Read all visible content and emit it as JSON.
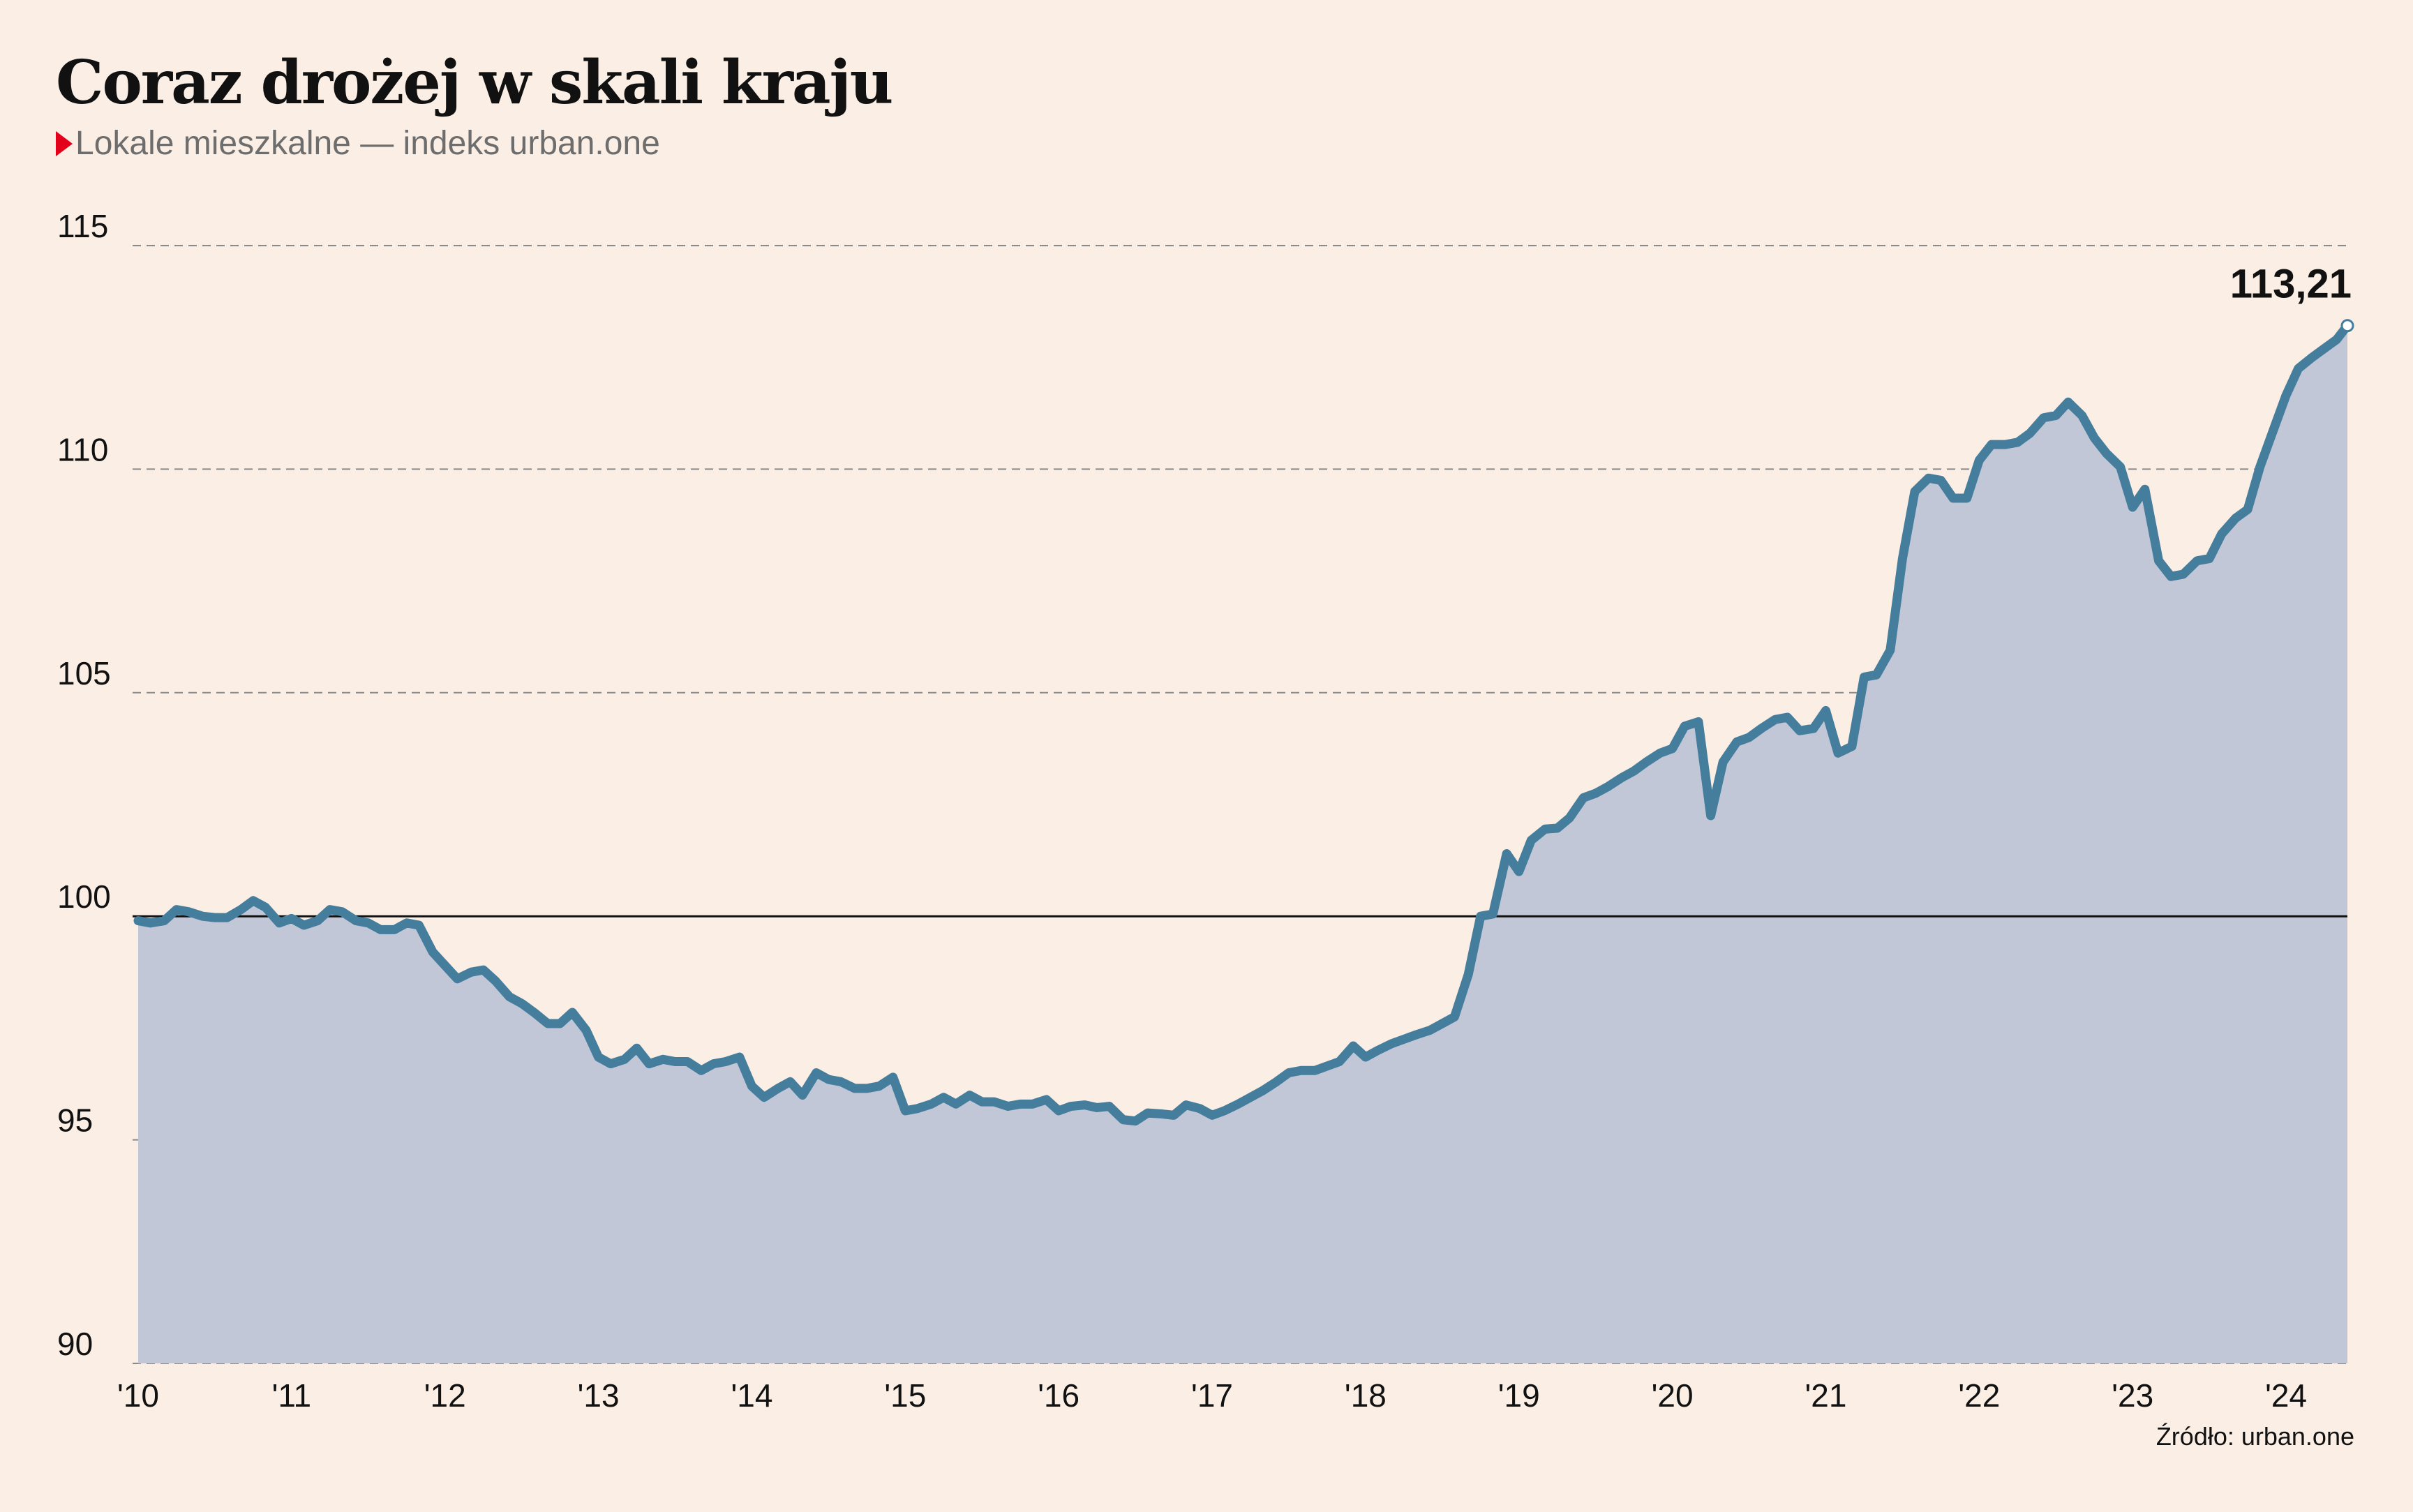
{
  "chart_data": {
    "type": "area",
    "title": "Coraz drożej w skali kraju",
    "subtitle": "Lokale mieszkalne — indeks urban.one",
    "source": "Źródło: urban.one",
    "y_ticks": [
      "115",
      "110",
      "105",
      "100",
      "95",
      "90"
    ],
    "x_ticks": [
      "'10",
      "'11",
      "'12",
      "'13",
      "'14",
      "'15",
      "'16",
      "'17",
      "'18",
      "'19",
      "'20",
      "'21",
      "'22",
      "'23",
      "'24"
    ],
    "xlim": [
      2010.0,
      2024.4
    ],
    "ylim": [
      90,
      115
    ],
    "reference_line": 100,
    "grid": true,
    "last_value_label": "113,21",
    "colors": {
      "background": "#fbeee4",
      "line": "#457d9c",
      "area": "#c2c7d8",
      "grid": "#8a8a8a",
      "reference": "#111111",
      "marker": "#e2001a"
    },
    "series": [
      {
        "points": [
          [
            2010.0,
            99.9
          ],
          [
            2010.08,
            99.85
          ],
          [
            2010.17,
            99.9
          ],
          [
            2010.25,
            100.15
          ],
          [
            2010.33,
            100.1
          ],
          [
            2010.42,
            100.0
          ],
          [
            2010.5,
            99.97
          ],
          [
            2010.58,
            99.97
          ],
          [
            2010.67,
            100.15
          ],
          [
            2010.75,
            100.35
          ],
          [
            2010.83,
            100.2
          ],
          [
            2010.92,
            99.85
          ],
          [
            2011.0,
            99.95
          ],
          [
            2011.08,
            99.8
          ],
          [
            2011.17,
            99.9
          ],
          [
            2011.25,
            100.15
          ],
          [
            2011.33,
            100.1
          ],
          [
            2011.42,
            99.9
          ],
          [
            2011.5,
            99.85
          ],
          [
            2011.58,
            99.7
          ],
          [
            2011.67,
            99.7
          ],
          [
            2011.75,
            99.85
          ],
          [
            2011.83,
            99.8
          ],
          [
            2011.92,
            99.2
          ],
          [
            2012.0,
            98.9
          ],
          [
            2012.08,
            98.6
          ],
          [
            2012.17,
            98.75
          ],
          [
            2012.25,
            98.8
          ],
          [
            2012.33,
            98.55
          ],
          [
            2012.42,
            98.2
          ],
          [
            2012.5,
            98.05
          ],
          [
            2012.58,
            97.85
          ],
          [
            2012.67,
            97.6
          ],
          [
            2012.75,
            97.6
          ],
          [
            2012.83,
            97.85
          ],
          [
            2012.92,
            97.45
          ],
          [
            2013.0,
            96.85
          ],
          [
            2013.08,
            96.7
          ],
          [
            2013.17,
            96.8
          ],
          [
            2013.25,
            97.05
          ],
          [
            2013.33,
            96.7
          ],
          [
            2013.42,
            96.8
          ],
          [
            2013.5,
            96.75
          ],
          [
            2013.58,
            96.75
          ],
          [
            2013.67,
            96.55
          ],
          [
            2013.75,
            96.7
          ],
          [
            2013.83,
            96.75
          ],
          [
            2013.92,
            96.85
          ],
          [
            2014.0,
            96.2
          ],
          [
            2014.08,
            95.95
          ],
          [
            2014.17,
            96.15
          ],
          [
            2014.25,
            96.3
          ],
          [
            2014.33,
            96.0
          ],
          [
            2014.42,
            96.5
          ],
          [
            2014.5,
            96.35
          ],
          [
            2014.58,
            96.3
          ],
          [
            2014.67,
            96.15
          ],
          [
            2014.75,
            96.15
          ],
          [
            2014.83,
            96.2
          ],
          [
            2014.92,
            96.4
          ],
          [
            2015.0,
            95.65
          ],
          [
            2015.08,
            95.7
          ],
          [
            2015.17,
            95.8
          ],
          [
            2015.25,
            95.95
          ],
          [
            2015.33,
            95.8
          ],
          [
            2015.42,
            96.0
          ],
          [
            2015.5,
            95.85
          ],
          [
            2015.58,
            95.85
          ],
          [
            2015.67,
            95.75
          ],
          [
            2015.75,
            95.8
          ],
          [
            2015.83,
            95.8
          ],
          [
            2015.92,
            95.9
          ],
          [
            2016.0,
            95.65
          ],
          [
            2016.08,
            95.75
          ],
          [
            2016.17,
            95.78
          ],
          [
            2016.25,
            95.72
          ],
          [
            2016.33,
            95.75
          ],
          [
            2016.42,
            95.45
          ],
          [
            2016.5,
            95.42
          ],
          [
            2016.58,
            95.6
          ],
          [
            2016.67,
            95.58
          ],
          [
            2016.75,
            95.55
          ],
          [
            2016.83,
            95.78
          ],
          [
            2016.92,
            95.7
          ],
          [
            2017.0,
            95.55
          ],
          [
            2017.08,
            95.65
          ],
          [
            2017.17,
            95.8
          ],
          [
            2017.25,
            95.95
          ],
          [
            2017.33,
            96.1
          ],
          [
            2017.42,
            96.3
          ],
          [
            2017.5,
            96.5
          ],
          [
            2017.58,
            96.55
          ],
          [
            2017.67,
            96.55
          ],
          [
            2017.75,
            96.65
          ],
          [
            2017.83,
            96.75
          ],
          [
            2017.92,
            97.1
          ],
          [
            2018.0,
            96.85
          ],
          [
            2018.08,
            97.0
          ],
          [
            2018.17,
            97.15
          ],
          [
            2018.25,
            97.25
          ],
          [
            2018.33,
            97.35
          ],
          [
            2018.42,
            97.45
          ],
          [
            2018.5,
            97.6
          ],
          [
            2018.58,
            97.75
          ],
          [
            2018.67,
            98.7
          ],
          [
            2018.75,
            100.0
          ],
          [
            2018.83,
            100.05
          ],
          [
            2018.92,
            101.4
          ],
          [
            2019.0,
            101.0
          ],
          [
            2019.08,
            101.7
          ],
          [
            2019.17,
            101.95
          ],
          [
            2019.25,
            101.97
          ],
          [
            2019.33,
            102.2
          ],
          [
            2019.42,
            102.65
          ],
          [
            2019.5,
            102.75
          ],
          [
            2019.58,
            102.9
          ],
          [
            2019.67,
            103.1
          ],
          [
            2019.75,
            103.25
          ],
          [
            2019.83,
            103.45
          ],
          [
            2019.92,
            103.65
          ],
          [
            2020.0,
            103.75
          ],
          [
            2020.08,
            104.25
          ],
          [
            2020.17,
            104.35
          ],
          [
            2020.25,
            102.25
          ],
          [
            2020.33,
            103.45
          ],
          [
            2020.42,
            103.9
          ],
          [
            2020.5,
            104.0
          ],
          [
            2020.58,
            104.2
          ],
          [
            2020.67,
            104.4
          ],
          [
            2020.75,
            104.45
          ],
          [
            2020.83,
            104.15
          ],
          [
            2020.92,
            104.2
          ],
          [
            2021.0,
            104.6
          ],
          [
            2021.08,
            103.65
          ],
          [
            2021.17,
            103.8
          ],
          [
            2021.25,
            105.35
          ],
          [
            2021.33,
            105.4
          ],
          [
            2021.42,
            105.95
          ],
          [
            2021.5,
            108.0
          ],
          [
            2021.58,
            109.5
          ],
          [
            2021.67,
            109.8
          ],
          [
            2021.75,
            109.75
          ],
          [
            2021.83,
            109.35
          ],
          [
            2021.92,
            109.35
          ],
          [
            2022.0,
            110.2
          ],
          [
            2022.08,
            110.55
          ],
          [
            2022.17,
            110.55
          ],
          [
            2022.25,
            110.6
          ],
          [
            2022.33,
            110.8
          ],
          [
            2022.42,
            111.15
          ],
          [
            2022.5,
            111.2
          ],
          [
            2022.58,
            111.5
          ],
          [
            2022.67,
            111.2
          ],
          [
            2022.75,
            110.7
          ],
          [
            2022.83,
            110.35
          ],
          [
            2022.92,
            110.05
          ],
          [
            2023.0,
            109.15
          ],
          [
            2023.08,
            109.55
          ],
          [
            2023.17,
            107.95
          ],
          [
            2023.25,
            107.6
          ],
          [
            2023.33,
            107.65
          ],
          [
            2023.42,
            107.95
          ],
          [
            2023.5,
            108.0
          ],
          [
            2023.58,
            108.55
          ],
          [
            2023.67,
            108.9
          ],
          [
            2023.75,
            109.1
          ],
          [
            2023.83,
            110.05
          ],
          [
            2023.92,
            110.9
          ],
          [
            2024.0,
            111.65
          ],
          [
            2024.08,
            112.25
          ],
          [
            2024.17,
            112.5
          ],
          [
            2024.25,
            112.7
          ],
          [
            2024.33,
            112.9
          ],
          [
            2024.4,
            113.21
          ]
        ]
      }
    ]
  }
}
